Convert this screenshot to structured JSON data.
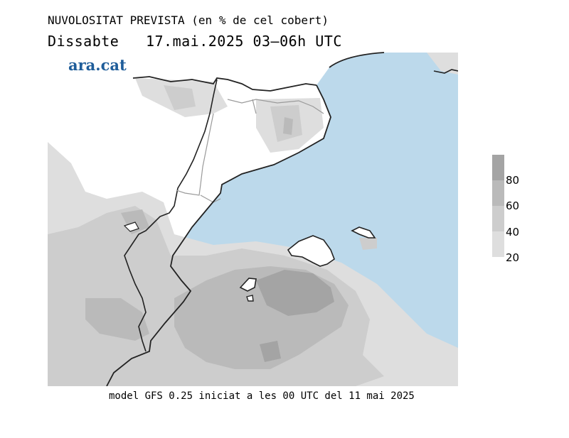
{
  "header": {
    "title": "NUVOLOSITAT PREVISTA (en % de cel cobert)",
    "day": "Dissabte",
    "datetime": "17.mai.2025 03–06h UTC"
  },
  "brand": {
    "logo_text": "ara.cat",
    "color": "#1f5d9a"
  },
  "footer": {
    "model_note": "model GFS 0.25 iniciat a les 00 UTC del 11 mai 2025"
  },
  "legend": {
    "ticks": [
      "80",
      "60",
      "40",
      "20"
    ],
    "colors": [
      "#a4a4a4",
      "#bababa",
      "#cdcdcd",
      "#dedede"
    ]
  },
  "map": {
    "sea_color": "#bcd9eb",
    "land_color": "#ffffff",
    "cloud_shades": [
      "#dedede",
      "#cdcdcd",
      "#bababa",
      "#a4a4a4"
    ]
  }
}
